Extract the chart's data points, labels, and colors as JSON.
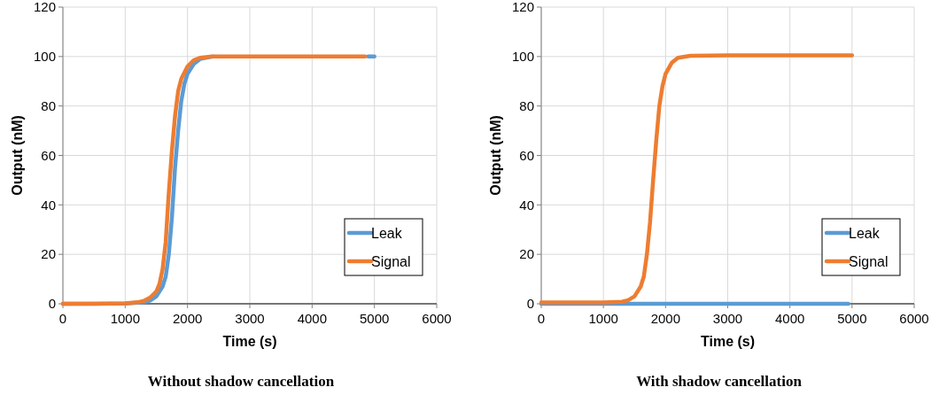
{
  "chart_data": [
    {
      "type": "line",
      "title": "Without shadow cancellation",
      "xlabel": "Time (s)",
      "ylabel": "Output (nM)",
      "xlim": [
        0,
        6000
      ],
      "xticks": [
        0,
        1000,
        2000,
        3000,
        4000,
        5000,
        6000
      ],
      "ylim": [
        0,
        120
      ],
      "yticks": [
        0,
        20,
        40,
        60,
        80,
        100,
        120
      ],
      "grid": true,
      "legend": "bottom right",
      "line_style": "solid",
      "series": [
        {
          "name": "Leak",
          "color": "#5b9bd5",
          "x": [
            0,
            1000,
            1300,
            1400,
            1500,
            1600,
            1650,
            1700,
            1750,
            1800,
            1850,
            1900,
            1950,
            2000,
            2100,
            2200,
            2400,
            3000,
            4000,
            4900,
            5000
          ],
          "values": [
            0,
            0.1,
            0.6,
            1.3,
            3,
            7,
            11,
            20,
            35,
            55,
            70,
            82,
            89,
            93,
            97,
            99,
            100,
            null,
            null,
            100,
            100
          ]
        },
        {
          "name": "Signal",
          "color": "#ed7d31",
          "x": [
            0,
            500,
            1000,
            1200,
            1300,
            1400,
            1500,
            1550,
            1600,
            1650,
            1700,
            1750,
            1800,
            1850,
            1900,
            2000,
            2100,
            2200,
            2400,
            3000,
            4000,
            4850
          ],
          "values": [
            0,
            0,
            0.2,
            0.6,
            1.2,
            2.5,
            5,
            8,
            14,
            25,
            45,
            62,
            76,
            86,
            91,
            96,
            98.5,
            99.5,
            100,
            100,
            100,
            100
          ]
        }
      ]
    },
    {
      "type": "line",
      "title": "With shadow cancellation",
      "xlabel": "Time (s)",
      "ylabel": "Output (nM)",
      "xlim": [
        0,
        6000
      ],
      "xticks": [
        0,
        1000,
        2000,
        3000,
        4000,
        5000,
        6000
      ],
      "ylim": [
        0,
        120
      ],
      "yticks": [
        0,
        20,
        40,
        60,
        80,
        100,
        120
      ],
      "grid": true,
      "legend": "bottom right",
      "line_style": "solid",
      "series": [
        {
          "name": "Leak",
          "color": "#5b9bd5",
          "x": [
            0,
            1000,
            2000,
            3000,
            4000,
            4940
          ],
          "values": [
            0,
            0,
            0,
            0,
            0,
            0
          ]
        },
        {
          "name": "Signal",
          "color": "#ed7d31",
          "x": [
            0,
            1000,
            1300,
            1400,
            1500,
            1600,
            1650,
            1700,
            1750,
            1800,
            1850,
            1900,
            1950,
            2000,
            2100,
            2200,
            2400,
            3000,
            4000,
            5000
          ],
          "values": [
            0.5,
            0.5,
            0.8,
            1.5,
            3,
            7,
            11,
            20,
            33,
            50,
            66,
            80,
            88,
            93,
            97.5,
            99.5,
            100.3,
            100.5,
            100.5,
            100.5
          ]
        }
      ]
    }
  ]
}
